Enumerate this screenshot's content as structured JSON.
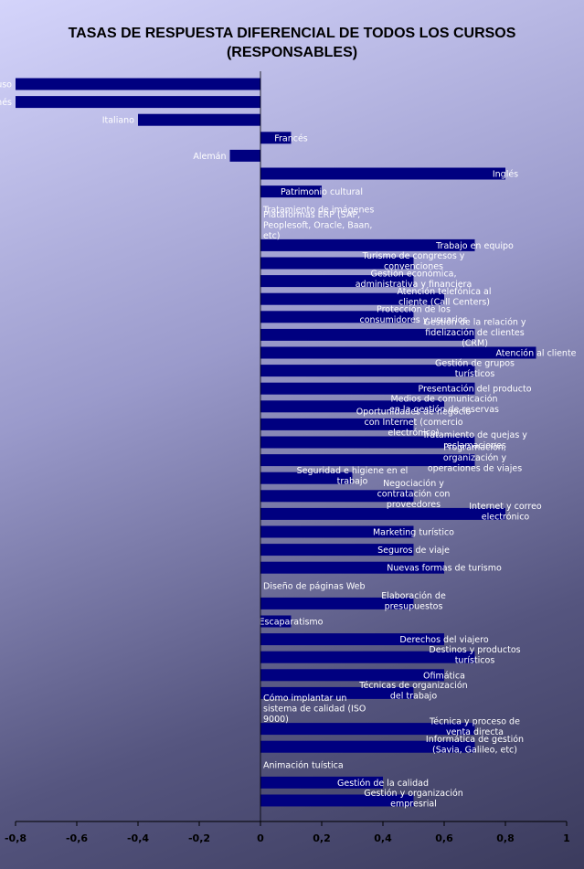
{
  "chart_data": {
    "type": "bar",
    "orientation": "horizontal",
    "title": [
      "TASAS DE RESPUESTA DIFERENCIAL DE TODOS LOS CURSOS",
      "(RESPONSABLES)"
    ],
    "xlim": [
      -0.8,
      1
    ],
    "xticks": [
      "-0,8",
      "-0,6",
      "-0,4",
      "-0,2",
      "0",
      "0,2",
      "0,4",
      "0,6",
      "0,8",
      "1"
    ],
    "grid": false,
    "bar_color": "#000080",
    "categories": [
      [
        "Ruso"
      ],
      [
        "Japonés"
      ],
      [
        "Italiano"
      ],
      [
        "Francés"
      ],
      [
        "Alemán"
      ],
      [
        "Inglés"
      ],
      [
        "Patrimonio cultural"
      ],
      [
        "Tratamiento de imágenes"
      ],
      [
        "Plataformas ERP (SAP,",
        "Peoplesoft, Oracle, Baan,",
        "etc)"
      ],
      [
        "Trabajo en equipo"
      ],
      [
        "Turismo de congresos y",
        "convenciones"
      ],
      [
        "Gestión económica,",
        "administrativa y financiera"
      ],
      [
        "Atención telefónica al",
        "cliente (Call Centers)"
      ],
      [
        "Protección de los",
        "consumidores y usuarios"
      ],
      [
        "Gestión de la relación y",
        "fidelización de clientes",
        "(CRM)"
      ],
      [
        "Atención al cliente"
      ],
      [
        "Gestión de grupos",
        "turísticos"
      ],
      [
        "Presentación del producto"
      ],
      [
        "Medios de comunicación",
        "en la gestión de reservas"
      ],
      [
        "Oportunidades de negocio",
        "con Internet (comercio",
        "electrónico)"
      ],
      [
        "Tratamiento de quejas y",
        "reclamaciones"
      ],
      [
        "Programación,",
        "organización y",
        "operaciones de viajes"
      ],
      [
        "Seguridad e higiene en el",
        "trabajo"
      ],
      [
        "Negociación y",
        "contratación con",
        "proveedores"
      ],
      [
        "Internet y correo",
        "electrónico"
      ],
      [
        "Marketing turístico"
      ],
      [
        "Seguros de viaje"
      ],
      [
        "Nuevas formas de turismo"
      ],
      [
        "Diseño de páginas Web"
      ],
      [
        "Elaboración de",
        "presupuestos"
      ],
      [
        "Escaparatismo"
      ],
      [
        "Derechos del viajero"
      ],
      [
        "Destinos y productos",
        "turísticos"
      ],
      [
        "Ofimática"
      ],
      [
        "Técnicas de organización",
        "del trabajo"
      ],
      [
        "Cómo implantar un",
        "sistema de calidad (ISO",
        "9000)"
      ],
      [
        "Técnica y proceso de",
        "venta directa"
      ],
      [
        "Informática de gestión",
        "(Savia, Galileo, etc)"
      ],
      [
        "Animación tuística"
      ],
      [
        "Gestión de la calidad"
      ],
      [
        "Gestión y organización",
        "empresrial"
      ]
    ],
    "values": [
      -0.8,
      -0.8,
      -0.4,
      0.1,
      -0.1,
      0.8,
      0.2,
      0,
      0,
      0.7,
      0.5,
      0.5,
      0.6,
      0.5,
      0.7,
      0.9,
      0.7,
      0.7,
      0.6,
      0.5,
      0.7,
      0.7,
      0.3,
      0.5,
      0.8,
      0.5,
      0.5,
      0.6,
      0,
      0.5,
      0.1,
      0.6,
      0.7,
      0.6,
      0.5,
      0,
      0.7,
      0.7,
      0,
      0.4,
      0.5
    ]
  }
}
